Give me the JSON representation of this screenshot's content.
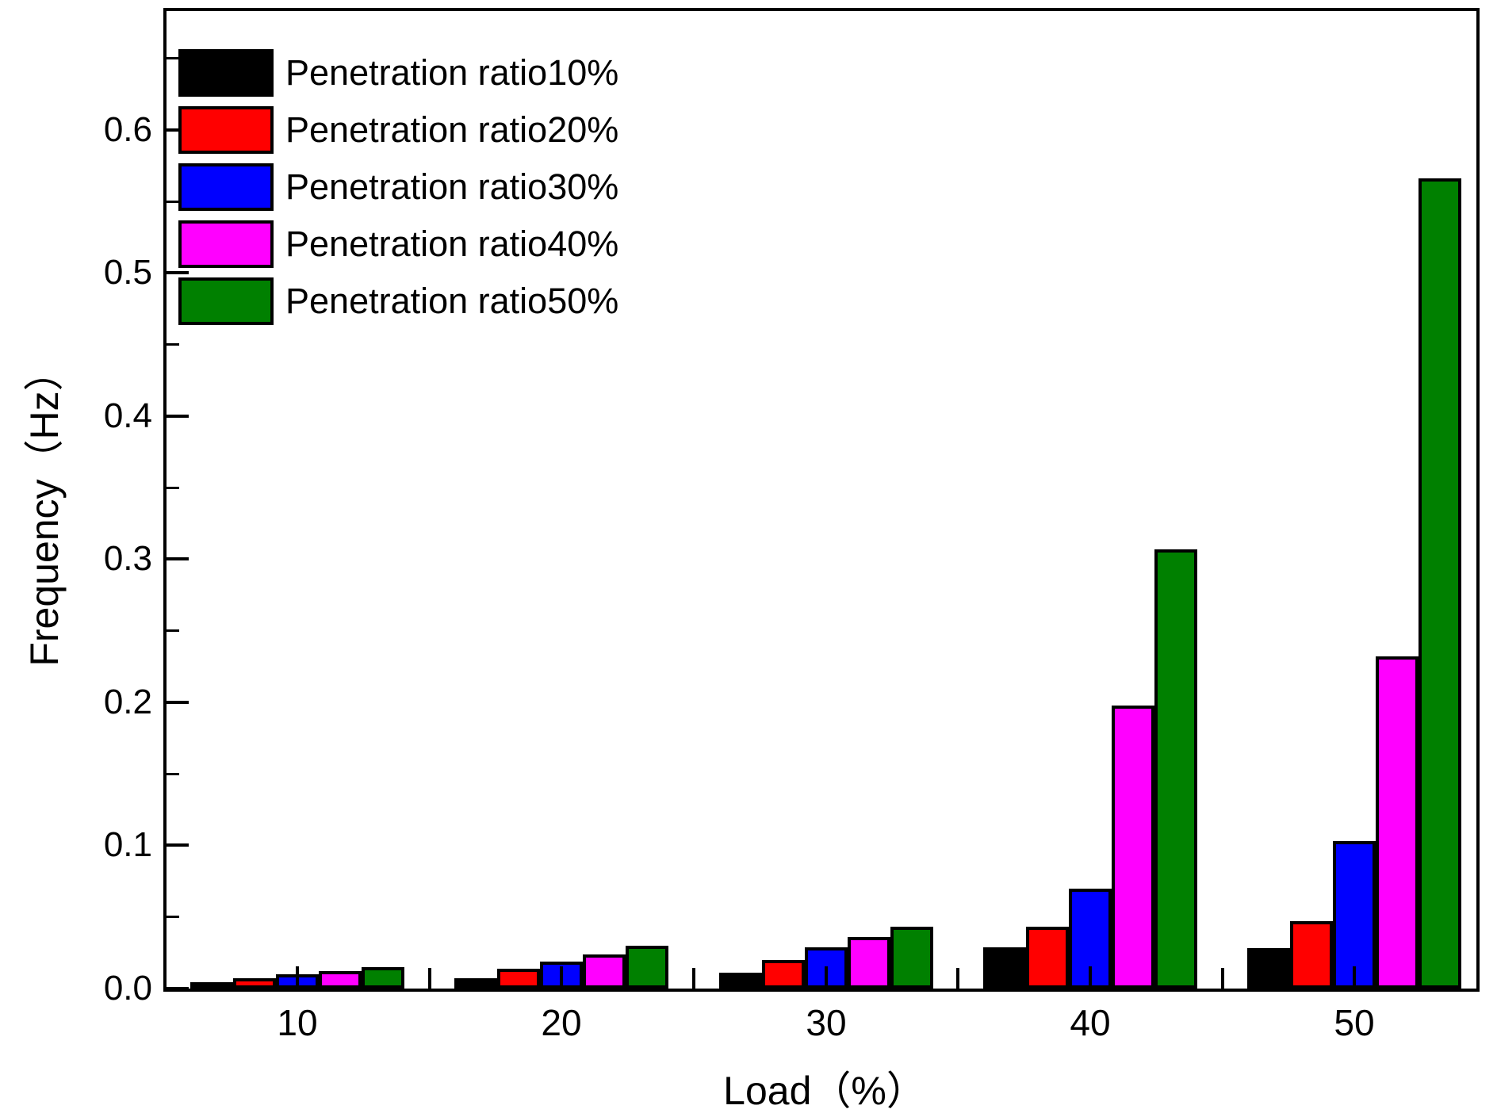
{
  "chart_data": {
    "type": "bar",
    "title": "",
    "xlabel": "Load（%）",
    "ylabel": "Frequency（Hz）",
    "categories": [
      "10",
      "20",
      "30",
      "40",
      "50"
    ],
    "series": [
      {
        "name": "Penetration ratio10%",
        "color": "#000000",
        "values": [
          0.004,
          0.007,
          0.011,
          0.029,
          0.028
        ]
      },
      {
        "name": "Penetration ratio20%",
        "color": "#FF0000",
        "values": [
          0.007,
          0.014,
          0.02,
          0.043,
          0.047
        ]
      },
      {
        "name": "Penetration ratio30%",
        "color": "#0000FF",
        "values": [
          0.01,
          0.019,
          0.029,
          0.07,
          0.103
        ]
      },
      {
        "name": "Penetration ratio40%",
        "color": "#FF00FF",
        "values": [
          0.012,
          0.024,
          0.036,
          0.198,
          0.232
        ]
      },
      {
        "name": "Penetration ratio50%",
        "color": "#008000",
        "values": [
          0.015,
          0.03,
          0.043,
          0.307,
          0.566
        ]
      }
    ],
    "y_axis": {
      "min": 0,
      "max": 0.683,
      "major_tick_values": [
        0.0,
        0.1,
        0.2,
        0.3,
        0.4,
        0.5,
        0.6
      ],
      "major_tick_labels": [
        "0.0",
        "0.1",
        "0.2",
        "0.3",
        "0.4",
        "0.5",
        "0.6"
      ],
      "minor_tick_step": 0.05
    },
    "legend_position": "top-left",
    "grid": false,
    "bar_outline_color": "#000000",
    "background_color": "#FFFFFF"
  }
}
